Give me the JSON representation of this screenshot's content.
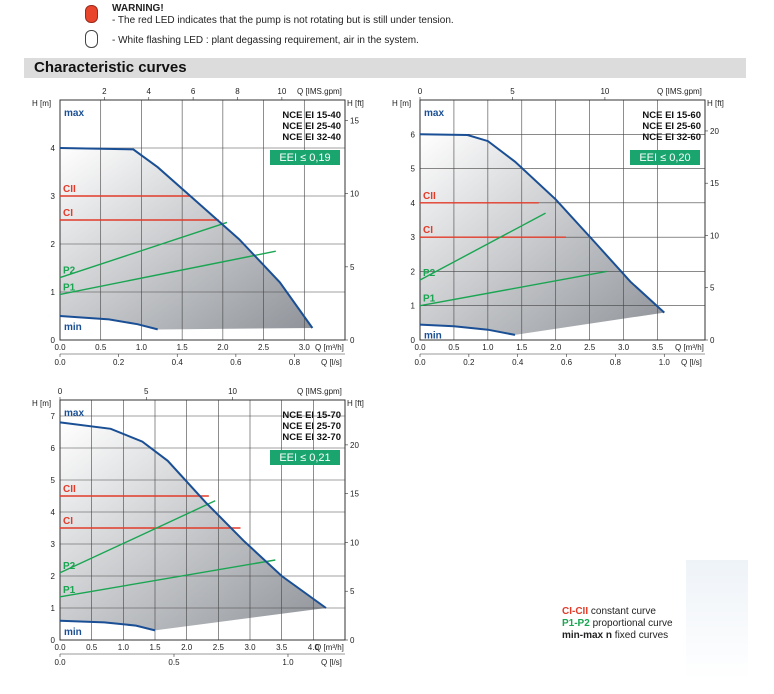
{
  "warning": {
    "title": "WARNING!",
    "line1": "- The red LED indicates that the pump is not rotating but is still under tension.",
    "line2": "- White flashing LED : plant degassing requirement, air in the system."
  },
  "section_title": "Characteristic curves",
  "legend": {
    "ci_key": "CI-CII",
    "ci_text": "constant curve",
    "p_key": "P1-P2",
    "p_text": "proportional curve",
    "mm_key": "min-max n",
    "mm_text": "fixed curves"
  },
  "colors": {
    "curve_blue": "#1a4f95",
    "constant_red": "#e23b2a",
    "proportional_green": "#1aa552",
    "eei_badge": "#1aa56f",
    "fill_gray": "#8f9399"
  },
  "chart_data": [
    {
      "type": "line",
      "models": [
        "NCE EI 15-40",
        "NCE EI 25-40",
        "NCE EI 32-40"
      ],
      "eei": "EEI ≤ 0,19",
      "xlim": [
        0,
        3.5
      ],
      "ylim": [
        0,
        5
      ],
      "x_ticks": [
        0.0,
        0.5,
        1.0,
        1.5,
        2.0,
        2.5,
        3.0
      ],
      "x_tick_labels": [
        "0.0",
        "0.5",
        "1.0",
        "1.5",
        "2.0",
        "2.5",
        "3.0"
      ],
      "xlabel": "Q [m³/h]",
      "y_ticks": [
        0,
        1,
        2,
        3,
        4
      ],
      "y_tick_labels": [
        "0",
        "1",
        "2",
        "3",
        "4"
      ],
      "ylabel": "H [m]",
      "top_ticks": [
        2,
        4,
        6,
        8,
        10
      ],
      "top_tick_labels": [
        "2",
        "4",
        "6",
        "8",
        "10"
      ],
      "top_per_x": 3.67,
      "top_label": "Q [IMS.gpm]",
      "bottom_ticks": [
        0,
        0.2,
        0.4,
        0.6,
        0.8
      ],
      "bottom_tick_labels": [
        "0.0",
        "0.2",
        "0.4",
        "0.6",
        "0.8"
      ],
      "bottom_per_x": 0.2778,
      "bottom_label": "Q [l/s]",
      "right_ticks": [
        0,
        5,
        10,
        15
      ],
      "right_tick_labels": [
        "0",
        "5",
        "10",
        "15"
      ],
      "right_per_y": 3.28,
      "right_label": "H [ft]",
      "max_curve": [
        [
          0,
          4.0
        ],
        [
          0.9,
          3.97
        ],
        [
          1.2,
          3.6
        ],
        [
          1.6,
          3.0
        ],
        [
          2.2,
          2.1
        ],
        [
          2.7,
          1.2
        ],
        [
          3.1,
          0.25
        ]
      ],
      "min_curve": [
        [
          0,
          0.5
        ],
        [
          0.6,
          0.43
        ],
        [
          0.95,
          0.33
        ],
        [
          1.2,
          0.22
        ]
      ],
      "area_floor": [
        [
          3.1,
          0.25
        ],
        [
          1.2,
          0.22
        ]
      ],
      "constant_lines": [
        {
          "name": "CII",
          "h": 3.0,
          "x_end": 1.6
        },
        {
          "name": "CI",
          "h": 2.5,
          "x_end": 1.95
        }
      ],
      "proportional_lines": [
        {
          "name": "P2",
          "from": [
            0,
            1.3
          ],
          "to": [
            2.05,
            2.45
          ]
        },
        {
          "name": "P1",
          "from": [
            0,
            0.95
          ],
          "to": [
            2.65,
            1.85
          ]
        }
      ]
    },
    {
      "type": "line",
      "models": [
        "NCE EI 15-60",
        "NCE EI 25-60",
        "NCE EI 32-60"
      ],
      "eei": "EEI ≤ 0,20",
      "xlim": [
        0,
        4.2
      ],
      "ylim": [
        0,
        7
      ],
      "x_ticks": [
        0.0,
        0.5,
        1.0,
        1.5,
        2.0,
        2.5,
        3.0,
        3.5
      ],
      "x_tick_labels": [
        "0.0",
        "0.5",
        "1.0",
        "1.5",
        "2.0",
        "2.5",
        "3.0",
        "3.5"
      ],
      "xlabel": "Q [m³/h]",
      "y_ticks": [
        0,
        1,
        2,
        3,
        4,
        5,
        6
      ],
      "y_tick_labels": [
        "0",
        "1",
        "2",
        "3",
        "4",
        "5",
        "6"
      ],
      "ylabel": "H [m]",
      "top_ticks": [
        0,
        5,
        10
      ],
      "top_tick_labels": [
        "0",
        "5",
        "10"
      ],
      "top_per_x": 3.67,
      "top_label": "Q [IMS.gpm]",
      "bottom_ticks": [
        0,
        0.2,
        0.4,
        0.6,
        0.8,
        1.0
      ],
      "bottom_tick_labels": [
        "0.0",
        "0.2",
        "0.4",
        "0.6",
        "0.8",
        "1.0"
      ],
      "bottom_per_x": 0.2778,
      "bottom_label": "Q [l/s]",
      "right_ticks": [
        0,
        5,
        10,
        15,
        20
      ],
      "right_tick_labels": [
        "0",
        "5",
        "10",
        "15",
        "20"
      ],
      "right_per_y": 3.28,
      "right_label": "H [ft]",
      "max_curve": [
        [
          0,
          6.0
        ],
        [
          0.7,
          5.98
        ],
        [
          1.0,
          5.8
        ],
        [
          1.4,
          5.2
        ],
        [
          2.0,
          4.1
        ],
        [
          2.6,
          2.8
        ],
        [
          3.1,
          1.7
        ],
        [
          3.6,
          0.8
        ]
      ],
      "min_curve": [
        [
          0,
          0.45
        ],
        [
          0.5,
          0.4
        ],
        [
          1.0,
          0.3
        ],
        [
          1.4,
          0.15
        ]
      ],
      "area_floor": [
        [
          3.6,
          0.8
        ],
        [
          1.4,
          0.15
        ]
      ],
      "constant_lines": [
        {
          "name": "CII",
          "h": 4.0,
          "x_end": 1.75
        },
        {
          "name": "CI",
          "h": 3.0,
          "x_end": 2.15
        }
      ],
      "proportional_lines": [
        {
          "name": "P2",
          "from": [
            0,
            1.75
          ],
          "to": [
            1.85,
            3.7
          ]
        },
        {
          "name": "P1",
          "from": [
            0,
            1.0
          ],
          "to": [
            2.75,
            2.0
          ]
        }
      ]
    },
    {
      "type": "line",
      "models": [
        "NCE EI 15-70",
        "NCE EI 25-70",
        "NCE EI 32-70"
      ],
      "eei": "EEI ≤ 0,21",
      "xlim": [
        0,
        4.5
      ],
      "ylim": [
        0,
        7.5
      ],
      "x_ticks": [
        0.0,
        0.5,
        1.0,
        1.5,
        2.0,
        2.5,
        3.0,
        3.5,
        4.0
      ],
      "x_tick_labels": [
        "0.0",
        "0.5",
        "1.0",
        "1.5",
        "2.0",
        "2.5",
        "3.0",
        "3.5",
        "4.0"
      ],
      "xlabel": "Q [m³/h]",
      "y_ticks": [
        0,
        1,
        2,
        3,
        4,
        5,
        6,
        7
      ],
      "y_tick_labels": [
        "0",
        "1",
        "2",
        "3",
        "4",
        "5",
        "6",
        "7"
      ],
      "ylabel": "H [m]",
      "top_ticks": [
        0,
        5,
        10
      ],
      "top_tick_labels": [
        "0",
        "5",
        "10"
      ],
      "top_per_x": 3.67,
      "top_label": "Q [IMS.gpm]",
      "bottom_ticks": [
        0,
        0.5,
        1.0
      ],
      "bottom_tick_labels": [
        "0.0",
        "0.5",
        "1.0"
      ],
      "bottom_per_x": 0.2778,
      "bottom_label": "Q [l/s]",
      "right_ticks": [
        0,
        5,
        10,
        15,
        20
      ],
      "right_tick_labels": [
        "0",
        "5",
        "10",
        "15",
        "20"
      ],
      "right_per_y": 3.28,
      "right_label": "H [ft]",
      "max_curve": [
        [
          0,
          6.8
        ],
        [
          0.8,
          6.6
        ],
        [
          1.3,
          6.2
        ],
        [
          1.7,
          5.6
        ],
        [
          2.3,
          4.3
        ],
        [
          2.9,
          3.1
        ],
        [
          3.5,
          2.0
        ],
        [
          4.2,
          1.0
        ]
      ],
      "min_curve": [
        [
          0,
          0.6
        ],
        [
          0.7,
          0.55
        ],
        [
          1.2,
          0.45
        ],
        [
          1.5,
          0.3
        ]
      ],
      "area_floor": [
        [
          4.2,
          1.0
        ],
        [
          1.5,
          0.3
        ]
      ],
      "constant_lines": [
        {
          "name": "CII",
          "h": 4.5,
          "x_end": 2.35
        },
        {
          "name": "CI",
          "h": 3.5,
          "x_end": 2.85
        }
      ],
      "proportional_lines": [
        {
          "name": "P2",
          "from": [
            0,
            2.1
          ],
          "to": [
            2.45,
            4.35
          ]
        },
        {
          "name": "P1",
          "from": [
            0,
            1.35
          ],
          "to": [
            3.4,
            2.5
          ]
        }
      ]
    }
  ]
}
